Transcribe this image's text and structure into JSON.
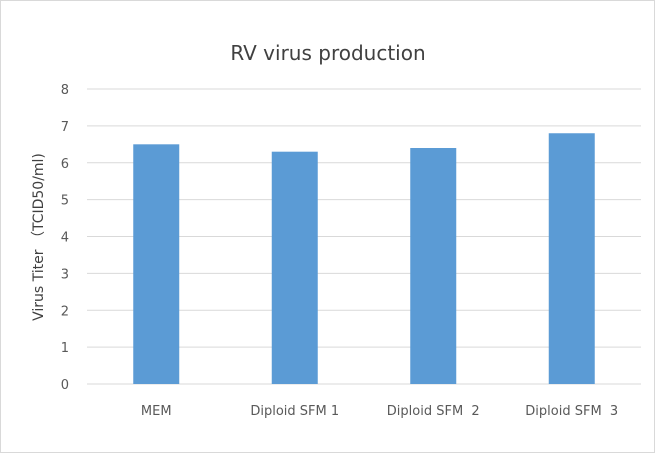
{
  "chart_data": {
    "type": "bar",
    "title": "RV virus production",
    "xlabel": "",
    "ylabel": "Virus Titer （TCID50/ml)",
    "categories": [
      "MEM",
      "Diploid SFM 1",
      "Diploid SFM  2",
      "Diploid SFM  3"
    ],
    "values": [
      6.5,
      6.3,
      6.4,
      6.8
    ],
    "ylim": [
      0,
      8
    ],
    "yticks": [
      "0",
      "1",
      "2",
      "3",
      "4",
      "5",
      "6",
      "7",
      "8"
    ],
    "grid": true,
    "legend": "none",
    "bar_color": "#5b9bd5"
  }
}
